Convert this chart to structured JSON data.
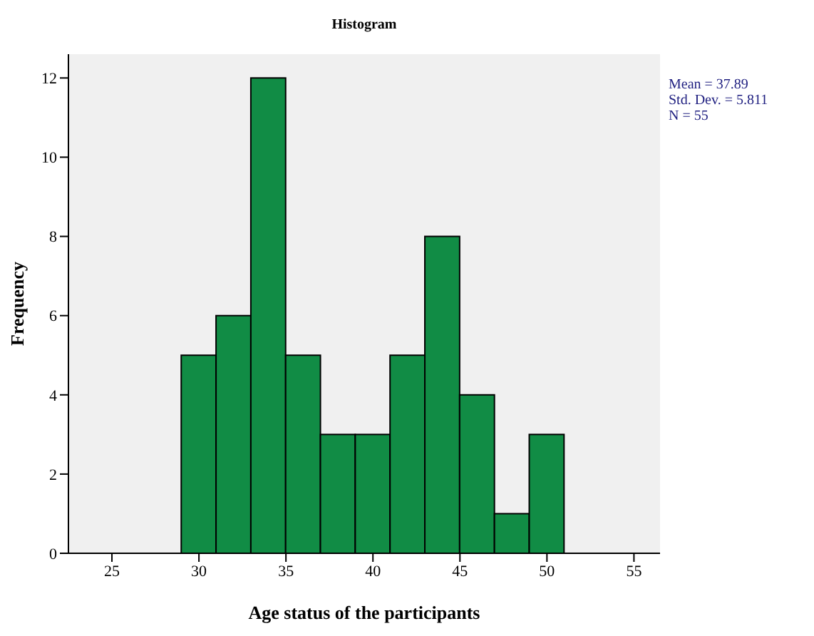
{
  "chart_data": {
    "type": "histogram",
    "title": "Histogram",
    "xlabel": "Age status of the participants",
    "ylabel": "Frequency",
    "bins": [
      29,
      31,
      33,
      35,
      37,
      39,
      41,
      43,
      45,
      47,
      49,
      51
    ],
    "values": [
      5,
      6,
      12,
      5,
      3,
      3,
      5,
      8,
      4,
      1,
      3
    ],
    "color": "#118c45",
    "xlim": [
      22.5,
      56.5
    ],
    "xticks": [
      25,
      30,
      35,
      40,
      45,
      50,
      55
    ],
    "ylim": [
      0,
      12.6
    ],
    "yticks": [
      0,
      2,
      4,
      6,
      8,
      10,
      12
    ],
    "annotations": [
      "Mean = 37.89",
      "Std. Dev. = 5.811",
      "N = 55"
    ],
    "grid": false,
    "legend": false
  }
}
